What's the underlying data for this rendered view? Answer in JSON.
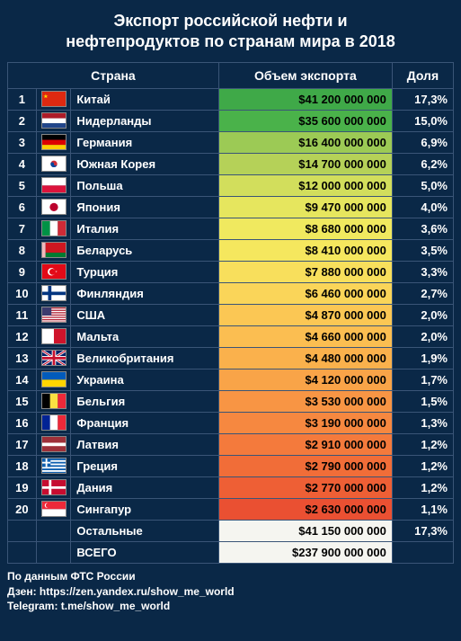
{
  "title_line1": "Экспорт российской нефти и",
  "title_line2": "нефтепродуктов по странам мира в 2018",
  "columns": {
    "country": "Страна",
    "volume": "Объем экспорта",
    "share": "Доля"
  },
  "rows": [
    {
      "rank": "1",
      "country": "Китай",
      "volume": "$41 200 000 000",
      "share": "17,3%",
      "bg": "#3fa948",
      "flag": "cn"
    },
    {
      "rank": "2",
      "country": "Нидерланды",
      "volume": "$35 600 000 000",
      "share": "15,0%",
      "bg": "#4ab24a",
      "flag": "nl"
    },
    {
      "rank": "3",
      "country": "Германия",
      "volume": "$16 400 000 000",
      "share": "6,9%",
      "bg": "#9cca55",
      "flag": "de"
    },
    {
      "rank": "4",
      "country": "Южная Корея",
      "volume": "$14 700 000 000",
      "share": "6,2%",
      "bg": "#b5d158",
      "flag": "kr"
    },
    {
      "rank": "5",
      "country": "Польша",
      "volume": "$12 000 000 000",
      "share": "5,0%",
      "bg": "#d2de5c",
      "flag": "pl"
    },
    {
      "rank": "6",
      "country": "Япония",
      "volume": "$9 470 000 000",
      "share": "4,0%",
      "bg": "#e6e65e",
      "flag": "jp"
    },
    {
      "rank": "7",
      "country": "Италия",
      "volume": "$8 680 000 000",
      "share": "3,6%",
      "bg": "#f0e95f",
      "flag": "it"
    },
    {
      "rank": "8",
      "country": "Беларусь",
      "volume": "$8 410 000 000",
      "share": "3,5%",
      "bg": "#f5e75e",
      "flag": "by"
    },
    {
      "rank": "9",
      "country": "Турция",
      "volume": "$7 880 000 000",
      "share": "3,3%",
      "bg": "#f8df5c",
      "flag": "tr"
    },
    {
      "rank": "10",
      "country": "Финляндия",
      "volume": "$6 460 000 000",
      "share": "2,7%",
      "bg": "#fad559",
      "flag": "fi"
    },
    {
      "rank": "11",
      "country": "США",
      "volume": "$4 870 000 000",
      "share": "2,0%",
      "bg": "#fbc754",
      "flag": "us"
    },
    {
      "rank": "12",
      "country": "Мальта",
      "volume": "$4 660 000 000",
      "share": "2,0%",
      "bg": "#fbbe51",
      "flag": "mt"
    },
    {
      "rank": "13",
      "country": "Великобритания",
      "volume": "$4 480 000 000",
      "share": "1,9%",
      "bg": "#fab14c",
      "flag": "gb"
    },
    {
      "rank": "14",
      "country": "Украина",
      "volume": "$4 120 000 000",
      "share": "1,7%",
      "bg": "#f9a448",
      "flag": "ua"
    },
    {
      "rank": "15",
      "country": "Бельгия",
      "volume": "$3 530 000 000",
      "share": "1,5%",
      "bg": "#f89544",
      "flag": "be"
    },
    {
      "rank": "16",
      "country": "Франция",
      "volume": "$3 190 000 000",
      "share": "1,3%",
      "bg": "#f68840",
      "flag": "fr"
    },
    {
      "rank": "17",
      "country": "Латвия",
      "volume": "$2 910 000 000",
      "share": "1,2%",
      "bg": "#f47a3c",
      "flag": "lv"
    },
    {
      "rank": "18",
      "country": "Греция",
      "volume": "$2 790 000 000",
      "share": "1,2%",
      "bg": "#f16d38",
      "flag": "gr"
    },
    {
      "rank": "19",
      "country": "Дания",
      "volume": "$2 770 000 000",
      "share": "1,2%",
      "bg": "#ee5f35",
      "flag": "dk"
    },
    {
      "rank": "20",
      "country": "Сингапур",
      "volume": "$2 630 000 000",
      "share": "1,1%",
      "bg": "#ea5032",
      "flag": "sg"
    }
  ],
  "summary": {
    "others_label": "Остальные",
    "others_value": "$41 150 000 000",
    "others_share": "17,3%",
    "total_label": "ВСЕГО",
    "total_value": "$237 900 000 000"
  },
  "footer": {
    "source": "По данным ФТС России",
    "zen_label": "Дзен: ",
    "zen_link": "https://zen.yandex.ru/show_me_world",
    "tg_label": "Telegram: ",
    "tg_link": "t.me/show_me_world"
  },
  "flags": {
    "cn": "<svg viewBox='0 0 28 18'><rect width='28' height='18' fill='#de2910'/><polygon points='4,3 5,6 8,6 5.5,7.5 6.5,10 4,8.5 1.5,10 2.5,7.5 0,6 3,6' fill='#ffde00' transform='scale(0.7) translate(2,1)'/></svg>",
    "nl": "<svg viewBox='0 0 28 18'><rect width='28' height='6' fill='#ae1c28'/><rect y='6' width='28' height='6' fill='#fff'/><rect y='12' width='28' height='6' fill='#21468b'/></svg>",
    "de": "<svg viewBox='0 0 28 18'><rect width='28' height='6' fill='#000'/><rect y='6' width='28' height='6' fill='#dd0000'/><rect y='12' width='28' height='6' fill='#ffce00'/></svg>",
    "kr": "<svg viewBox='0 0 28 18'><rect width='28' height='18' fill='#fff'/><circle cx='14' cy='9' r='4' fill='#cd2e3a'/><path d='M10,9 A4,4 0 0,0 18,9 A2,2 0 0,1 14,9 A2,2 0 0,0 10,9' fill='#0047a0'/></svg>",
    "pl": "<svg viewBox='0 0 28 18'><rect width='28' height='9' fill='#fff'/><rect y='9' width='28' height='9' fill='#dc143c'/></svg>",
    "jp": "<svg viewBox='0 0 28 18'><rect width='28' height='18' fill='#fff'/><circle cx='14' cy='9' r='5' fill='#bc002d'/></svg>",
    "it": "<svg viewBox='0 0 28 18'><rect width='9.33' height='18' fill='#009246'/><rect x='9.33' width='9.33' height='18' fill='#fff'/><rect x='18.66' width='9.33' height='18' fill='#ce2b37'/></svg>",
    "by": "<svg viewBox='0 0 28 18'><rect width='4' height='18' fill='#fff'/><rect x='4' width='24' height='12' fill='#ce1720'/><rect x='4' y='12' width='24' height='6' fill='#007c30'/><rect width='4' height='18' fill='#ce1720' opacity='0.3'/></svg>",
    "tr": "<svg viewBox='0 0 28 18'><rect width='28' height='18' fill='#e30a17'/><circle cx='11' cy='9' r='4.5' fill='#fff'/><circle cx='12.2' cy='9' r='3.6' fill='#e30a17'/><polygon points='15,9 17,7.5 16.3,10 18,8.3 15.5,8.3' fill='#fff'/></svg>",
    "fi": "<svg viewBox='0 0 28 18'><rect width='28' height='18' fill='#fff'/><rect x='7' width='4' height='18' fill='#003580'/><rect y='7' width='28' height='4' fill='#003580'/></svg>",
    "us": "<svg viewBox='0 0 28 18'><rect width='28' height='18' fill='#b22234'/><rect y='1.4' width='28' height='1.4' fill='#fff'/><rect y='4.2' width='28' height='1.4' fill='#fff'/><rect y='7' width='28' height='1.4' fill='#fff'/><rect y='9.8' width='28' height='1.4' fill='#fff'/><rect y='12.6' width='28' height='1.4' fill='#fff'/><rect y='15.4' width='28' height='1.4' fill='#fff'/><rect width='11' height='9.7' fill='#3c3b6e'/></svg>",
    "mt": "<svg viewBox='0 0 28 18'><rect width='14' height='18' fill='#fff'/><rect x='14' width='14' height='18' fill='#cf142b'/></svg>",
    "gb": "<svg viewBox='0 0 28 18'><rect width='28' height='18' fill='#012169'/><path d='M0,0 L28,18 M28,0 L0,18' stroke='#fff' stroke-width='3'/><path d='M0,0 L28,18 M28,0 L0,18' stroke='#c8102e' stroke-width='1.2'/><rect x='11.5' width='5' height='18' fill='#fff'/><rect y='6.5' width='28' height='5' fill='#fff'/><rect x='12.5' width='3' height='18' fill='#c8102e'/><rect y='7.5' width='28' height='3' fill='#c8102e'/></svg>",
    "ua": "<svg viewBox='0 0 28 18'><rect width='28' height='9' fill='#005bbb'/><rect y='9' width='28' height='9' fill='#ffd500'/></svg>",
    "be": "<svg viewBox='0 0 28 18'><rect width='9.33' height='18' fill='#000'/><rect x='9.33' width='9.33' height='18' fill='#fae042'/><rect x='18.66' width='9.33' height='18' fill='#ed2939'/></svg>",
    "fr": "<svg viewBox='0 0 28 18'><rect width='9.33' height='18' fill='#002395'/><rect x='9.33' width='9.33' height='18' fill='#fff'/><rect x='18.66' width='9.33' height='18' fill='#ed2939'/></svg>",
    "lv": "<svg viewBox='0 0 28 18'><rect width='28' height='18' fill='#9e3039'/><rect y='7' width='28' height='4' fill='#fff'/></svg>",
    "gr": "<svg viewBox='0 0 28 18'><rect width='28' height='18' fill='#0d5eaf'/><rect y='2' width='28' height='2' fill='#fff'/><rect y='6' width='28' height='2' fill='#fff'/><rect y='10' width='28' height='2' fill='#fff'/><rect y='14' width='28' height='2' fill='#fff'/><rect width='10' height='10' fill='#0d5eaf'/><rect x='4' width='2' height='10' fill='#fff'/><rect y='4' width='10' height='2' fill='#fff'/></svg>",
    "dk": "<svg viewBox='0 0 28 18'><rect width='28' height='18' fill='#c60c30'/><rect x='8' width='3' height='18' fill='#fff'/><rect y='7.5' width='28' height='3' fill='#fff'/></svg>",
    "sg": "<svg viewBox='0 0 28 18'><rect width='28' height='9' fill='#ed2939'/><rect y='9' width='28' height='9' fill='#fff'/><circle cx='6' cy='4.5' r='3' fill='#fff'/><circle cx='7.2' cy='4.5' r='3' fill='#ed2939'/></svg>"
  }
}
